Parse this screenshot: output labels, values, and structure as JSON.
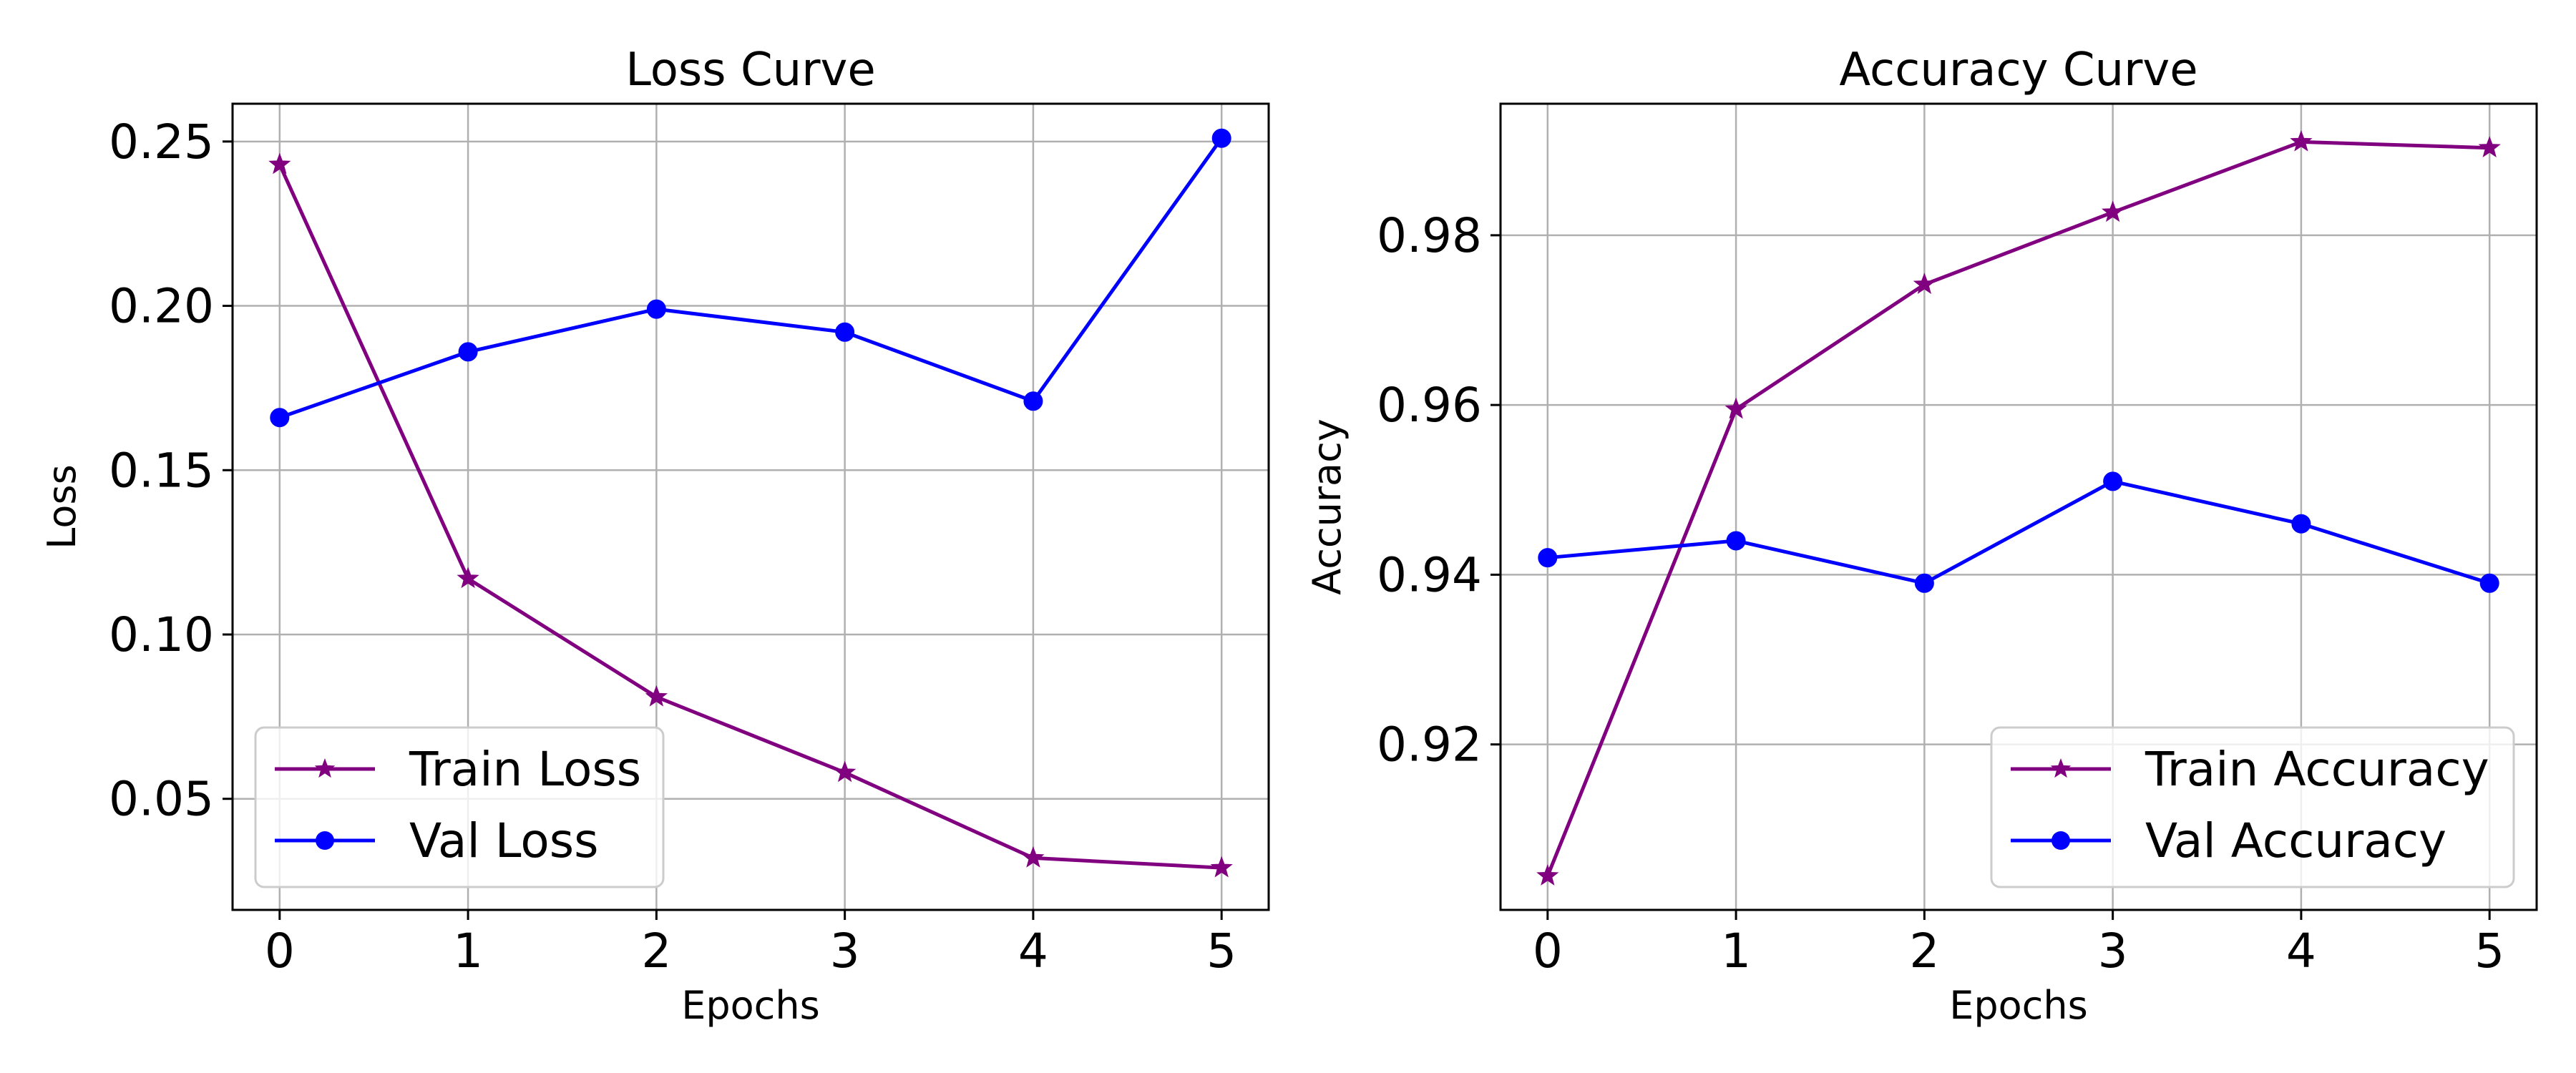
{
  "chart_data": [
    {
      "type": "line",
      "title": "Loss Curve",
      "xlabel": "Epochs",
      "ylabel": "Loss",
      "x": [
        0,
        1,
        2,
        3,
        4,
        5
      ],
      "xlim": [
        -0.25,
        5.25
      ],
      "ylim": [
        0.0162,
        0.2615
      ],
      "xticks": [
        0,
        1,
        2,
        3,
        4,
        5
      ],
      "yticks": [
        0.05,
        0.1,
        0.15,
        0.2,
        0.25
      ],
      "ytick_labels": [
        "0.05",
        "0.10",
        "0.15",
        "0.20",
        "0.25"
      ],
      "grid": true,
      "legend_position": "lower-left",
      "series": [
        {
          "name": "Train Loss",
          "color": "#800080",
          "marker": "star",
          "values": [
            0.243,
            0.117,
            0.081,
            0.058,
            0.032,
            0.029
          ]
        },
        {
          "name": "Val Loss",
          "color": "#0000ff",
          "marker": "circle",
          "values": [
            0.166,
            0.186,
            0.199,
            0.192,
            0.171,
            0.251
          ]
        }
      ]
    },
    {
      "type": "line",
      "title": "Accuracy Curve",
      "xlabel": "Epochs",
      "ylabel": "Accuracy",
      "x": [
        0,
        1,
        2,
        3,
        4,
        5
      ],
      "xlim": [
        -0.25,
        5.25
      ],
      "ylim": [
        0.9005,
        0.9955
      ],
      "xticks": [
        0,
        1,
        2,
        3,
        4,
        5
      ],
      "yticks": [
        0.92,
        0.94,
        0.96,
        0.98
      ],
      "ytick_labels": [
        "0.92",
        "0.94",
        "0.96",
        "0.98"
      ],
      "grid": true,
      "legend_position": "lower-right",
      "series": [
        {
          "name": "Train Accuracy",
          "color": "#800080",
          "marker": "star",
          "values": [
            0.9045,
            0.9595,
            0.9742,
            0.9827,
            0.991,
            0.9903
          ]
        },
        {
          "name": "Val Accuracy",
          "color": "#0000ff",
          "marker": "circle",
          "values": [
            0.942,
            0.944,
            0.939,
            0.951,
            0.946,
            0.939
          ]
        }
      ]
    }
  ]
}
